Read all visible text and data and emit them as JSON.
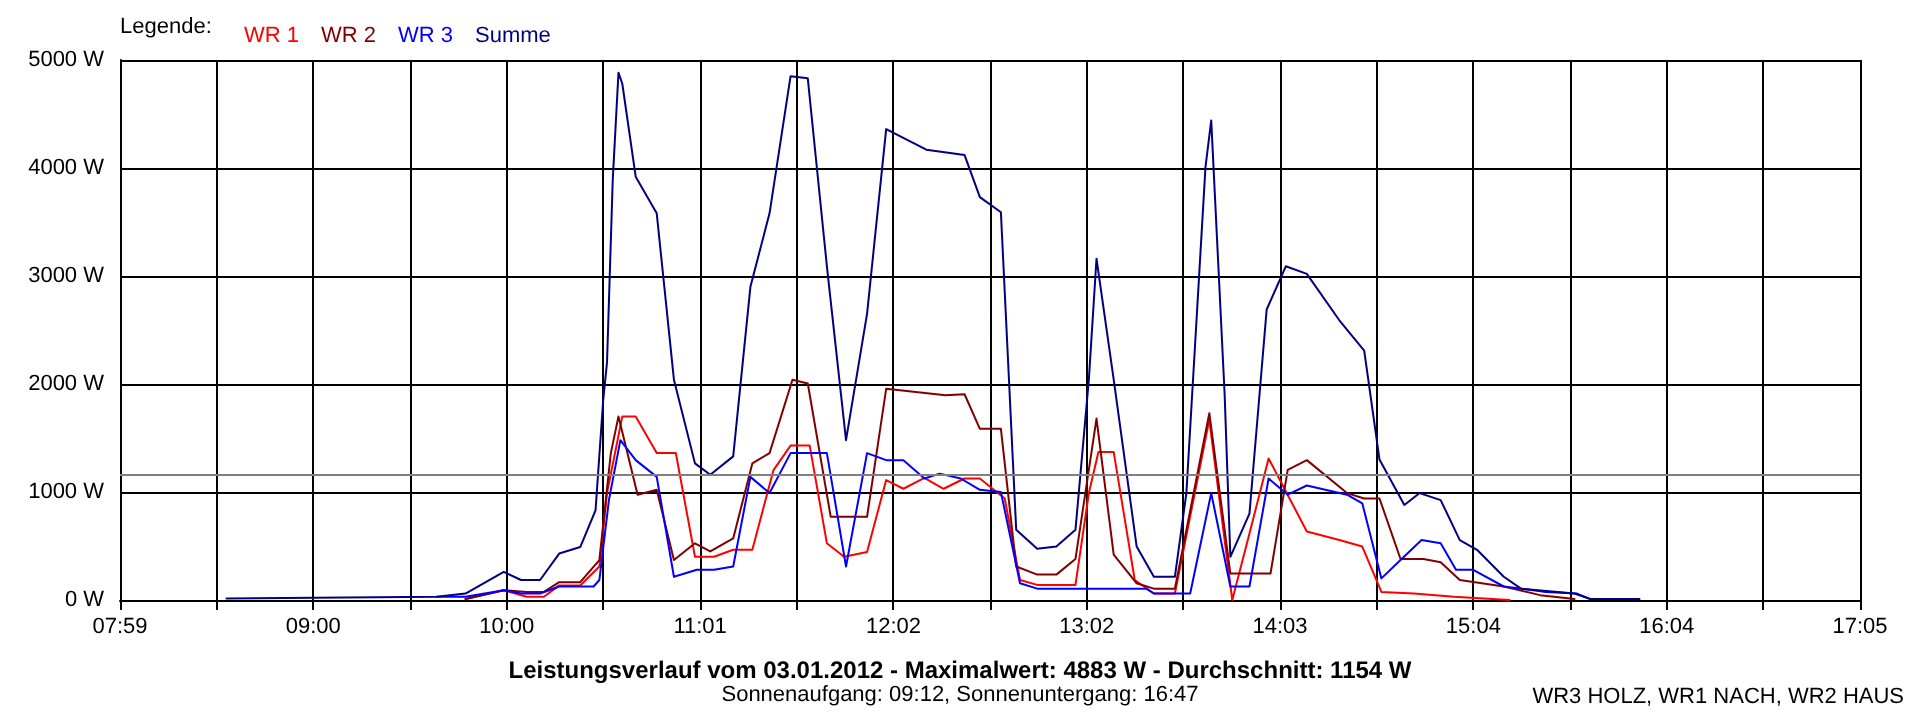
{
  "chart_data": {
    "type": "line",
    "title": "Leistungsverlauf vom 03.01.2012 - Maximalwert: 4883 W - Durchschnitt: 1154 W",
    "subtitle": "Sonnenaufgang: 09:12, Sonnenuntergang: 16:47",
    "legend_title": "Legende:",
    "annotations": [
      "WR3 HOLZ, WR1 NACH, WR2 HAUS"
    ],
    "xlim": [
      7.983,
      17.083
    ],
    "xticks": [
      {
        "value": 7.983,
        "label": "07:59"
      },
      {
        "value": 8.489,
        "label": null
      },
      {
        "value": 8.994,
        "label": "09:00"
      },
      {
        "value": 9.5,
        "label": null
      },
      {
        "value": 10.006,
        "label": "10:00"
      },
      {
        "value": 10.511,
        "label": null
      },
      {
        "value": 11.017,
        "label": "11:01"
      },
      {
        "value": 11.522,
        "label": null
      },
      {
        "value": 12.028,
        "label": "12:02"
      },
      {
        "value": 12.533,
        "label": null
      },
      {
        "value": 13.039,
        "label": "13:02"
      },
      {
        "value": 13.544,
        "label": null
      },
      {
        "value": 14.05,
        "label": "14:03"
      },
      {
        "value": 14.556,
        "label": null
      },
      {
        "value": 15.061,
        "label": "15:04"
      },
      {
        "value": 15.567,
        "label": null
      },
      {
        "value": 16.072,
        "label": "16:04"
      },
      {
        "value": 16.578,
        "label": null
      },
      {
        "value": 17.083,
        "label": "17:05"
      }
    ],
    "ylim": [
      0,
      5000
    ],
    "yticks": [
      {
        "value": 0,
        "label": "0 W"
      },
      {
        "value": 1000,
        "label": "1000 W"
      },
      {
        "value": 2000,
        "label": "2000 W"
      },
      {
        "value": 3000,
        "label": "3000 W"
      },
      {
        "value": 4000,
        "label": "4000 W"
      },
      {
        "value": 5000,
        "label": "5000 W"
      }
    ],
    "grid": true,
    "legend": "top left",
    "marker": "none",
    "line_style": "solid",
    "ref_lines": [
      {
        "axis": "y",
        "value": 1154,
        "label": null,
        "color": "#808080"
      }
    ],
    "series": [
      {
        "name": "WR 1",
        "color": "#ff0000",
        "x": [
          9.79,
          9.99,
          10.11,
          10.2,
          10.28,
          10.39,
          10.49,
          10.53,
          10.61,
          10.68,
          10.79,
          10.89,
          10.99,
          11.09,
          11.19,
          11.29,
          11.4,
          11.49,
          11.59,
          11.68,
          11.77,
          11.89,
          11.99,
          12.08,
          12.19,
          12.29,
          12.4,
          12.48,
          12.61,
          12.69,
          12.78,
          12.98,
          13.05,
          13.1,
          13.18,
          13.29,
          13.39,
          13.5,
          13.68,
          13.8,
          13.89,
          13.99,
          14.19,
          14.36,
          14.48,
          14.58,
          14.75,
          14.96,
          15.25
        ],
        "values": [
          10,
          90,
          30,
          30,
          135,
          135,
          310,
          990,
          1700,
          1700,
          1360,
          1360,
          400,
          400,
          465,
          465,
          1200,
          1430,
          1430,
          525,
          400,
          445,
          1110,
          1030,
          1130,
          1030,
          1125,
          1125,
          940,
          185,
          140,
          140,
          990,
          1370,
          1370,
          185,
          60,
          60,
          1670,
          0,
          615,
          1310,
          635,
          555,
          495,
          75,
          60,
          30,
          0
        ]
      },
      {
        "name": "WR 2",
        "color": "#800000",
        "x": [
          9.79,
          9.99,
          10.11,
          10.2,
          10.28,
          10.39,
          10.49,
          10.55,
          10.59,
          10.69,
          10.79,
          10.88,
          10.99,
          11.07,
          11.19,
          11.29,
          11.38,
          11.5,
          11.58,
          11.7,
          11.89,
          11.99,
          12.3,
          12.4,
          12.48,
          12.59,
          12.67,
          12.78,
          12.88,
          12.98,
          13.09,
          13.18,
          13.3,
          13.39,
          13.5,
          13.68,
          13.79,
          14.0,
          14.09,
          14.19,
          14.4,
          14.49,
          14.57,
          14.68,
          14.8,
          14.89,
          14.99,
          15.22,
          15.41,
          15.59
        ],
        "values": [
          10,
          90,
          75,
          75,
          165,
          165,
          370,
          1360,
          1700,
          975,
          1020,
          370,
          525,
          450,
          570,
          1265,
          1360,
          2040,
          2005,
          770,
          770,
          1955,
          1895,
          1905,
          1585,
          1585,
          310,
          235,
          235,
          380,
          1680,
          420,
          155,
          105,
          105,
          1730,
          245,
          245,
          1205,
          1295,
          990,
          940,
          940,
          380,
          380,
          350,
          185,
          125,
          45,
          10
        ]
      },
      {
        "name": "WR 3",
        "color": "#0000ff",
        "x": [
          9.64,
          9.79,
          9.99,
          10.08,
          10.18,
          10.28,
          10.46,
          10.49,
          10.54,
          10.6,
          10.68,
          10.79,
          10.88,
          11.0,
          11.09,
          11.19,
          11.28,
          11.38,
          11.49,
          11.68,
          11.78,
          11.89,
          11.99,
          12.08,
          12.19,
          12.27,
          12.38,
          12.48,
          12.59,
          12.69,
          12.78,
          13.35,
          13.39,
          13.58,
          13.69,
          13.79,
          13.89,
          13.99,
          14.09,
          14.19,
          14.4,
          14.48,
          14.58,
          14.68,
          14.79,
          14.89,
          14.97,
          15.06,
          15.22,
          15.44,
          15.6,
          15.67
        ],
        "values": [
          30,
          30,
          90,
          60,
          60,
          125,
          125,
          185,
          925,
          1480,
          1295,
          1140,
          215,
          280,
          280,
          310,
          1140,
          990,
          1360,
          1360,
          310,
          1360,
          1295,
          1295,
          1125,
          1170,
          1125,
          1020,
          1000,
          155,
          105,
          105,
          60,
          60,
          990,
          125,
          125,
          1125,
          975,
          1060,
          975,
          895,
          200,
          370,
          555,
          525,
          280,
          280,
          125,
          75,
          60,
          10
        ]
      },
      {
        "name": "Summe",
        "color": "#000080",
        "x": [
          8.54,
          9.64,
          9.79,
          9.99,
          10.08,
          10.18,
          10.28,
          10.39,
          10.47,
          10.51,
          10.53,
          10.56,
          10.59,
          10.61,
          10.68,
          10.79,
          10.88,
          10.99,
          11.07,
          11.19,
          11.28,
          11.38,
          11.49,
          11.58,
          11.68,
          11.78,
          11.89,
          11.99,
          12.2,
          12.4,
          12.48,
          12.59,
          12.67,
          12.78,
          12.88,
          12.98,
          13.05,
          13.09,
          13.18,
          13.3,
          13.39,
          13.5,
          13.56,
          13.66,
          13.69,
          13.76,
          13.79,
          13.89,
          13.98,
          14.08,
          14.19,
          14.36,
          14.49,
          14.57,
          14.7,
          14.78,
          14.89,
          14.99,
          15.08,
          15.22,
          15.31,
          15.59,
          15.67,
          15.93
        ],
        "values": [
          13,
          30,
          60,
          260,
          185,
          185,
          430,
          490,
          830,
          1850,
          2200,
          3890,
          4883,
          4780,
          3920,
          3580,
          2040,
          1265,
          1160,
          1330,
          2900,
          3580,
          4850,
          4830,
          3090,
          1480,
          2650,
          4360,
          4170,
          4120,
          3730,
          3590,
          650,
          475,
          495,
          650,
          2040,
          3160,
          2040,
          495,
          215,
          215,
          990,
          4010,
          4440,
          1910,
          400,
          800,
          2690,
          3090,
          3020,
          2590,
          2310,
          1300,
          880,
          990,
          925,
          555,
          465,
          215,
          105,
          60,
          10,
          10
        ]
      }
    ]
  }
}
